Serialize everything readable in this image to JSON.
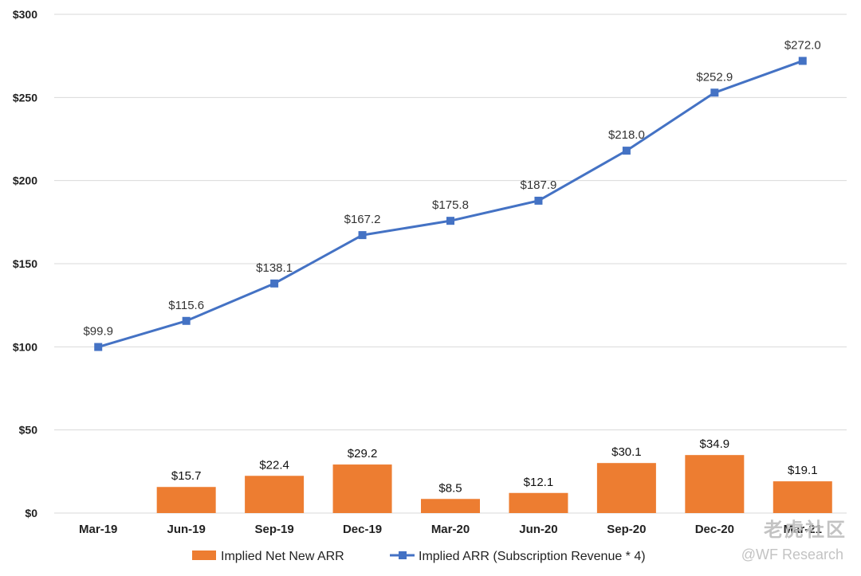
{
  "chart_data": {
    "type": "bar+line",
    "categories": [
      "Mar-19",
      "Jun-19",
      "Sep-19",
      "Dec-19",
      "Mar-20",
      "Jun-20",
      "Sep-20",
      "Dec-20",
      "Mar-21"
    ],
    "series": [
      {
        "name": "Implied Net New ARR",
        "kind": "bar",
        "color": "#ED7D31",
        "values": [
          null,
          15.7,
          22.4,
          29.2,
          8.5,
          12.1,
          30.1,
          34.9,
          19.1
        ],
        "labels": [
          "",
          "$15.7",
          "$22.4",
          "$29.2",
          "$8.5",
          "$12.1",
          "$30.1",
          "$34.9",
          "$19.1"
        ]
      },
      {
        "name": "Implied ARR (Subscription Revenue * 4)",
        "kind": "line",
        "color": "#4472C4",
        "values": [
          99.9,
          115.6,
          138.1,
          167.2,
          175.8,
          187.9,
          218.0,
          252.9,
          272.0
        ],
        "labels": [
          "$99.9",
          "$115.6",
          "$138.1",
          "$167.2",
          "$175.8",
          "$187.9",
          "$218.0",
          "$252.9",
          "$272.0"
        ]
      }
    ],
    "y_ticks": [
      0,
      50,
      100,
      150,
      200,
      250,
      300
    ],
    "y_tick_labels": [
      "$0",
      "$50",
      "$100",
      "$150",
      "$200",
      "$250",
      "$300"
    ],
    "ylim": [
      0,
      300
    ],
    "grid": true,
    "legend_position": "bottom-center",
    "title": "",
    "xlabel": "",
    "ylabel": ""
  },
  "watermark": {
    "line1": "老虎社区",
    "line2": "@WF Research"
  }
}
